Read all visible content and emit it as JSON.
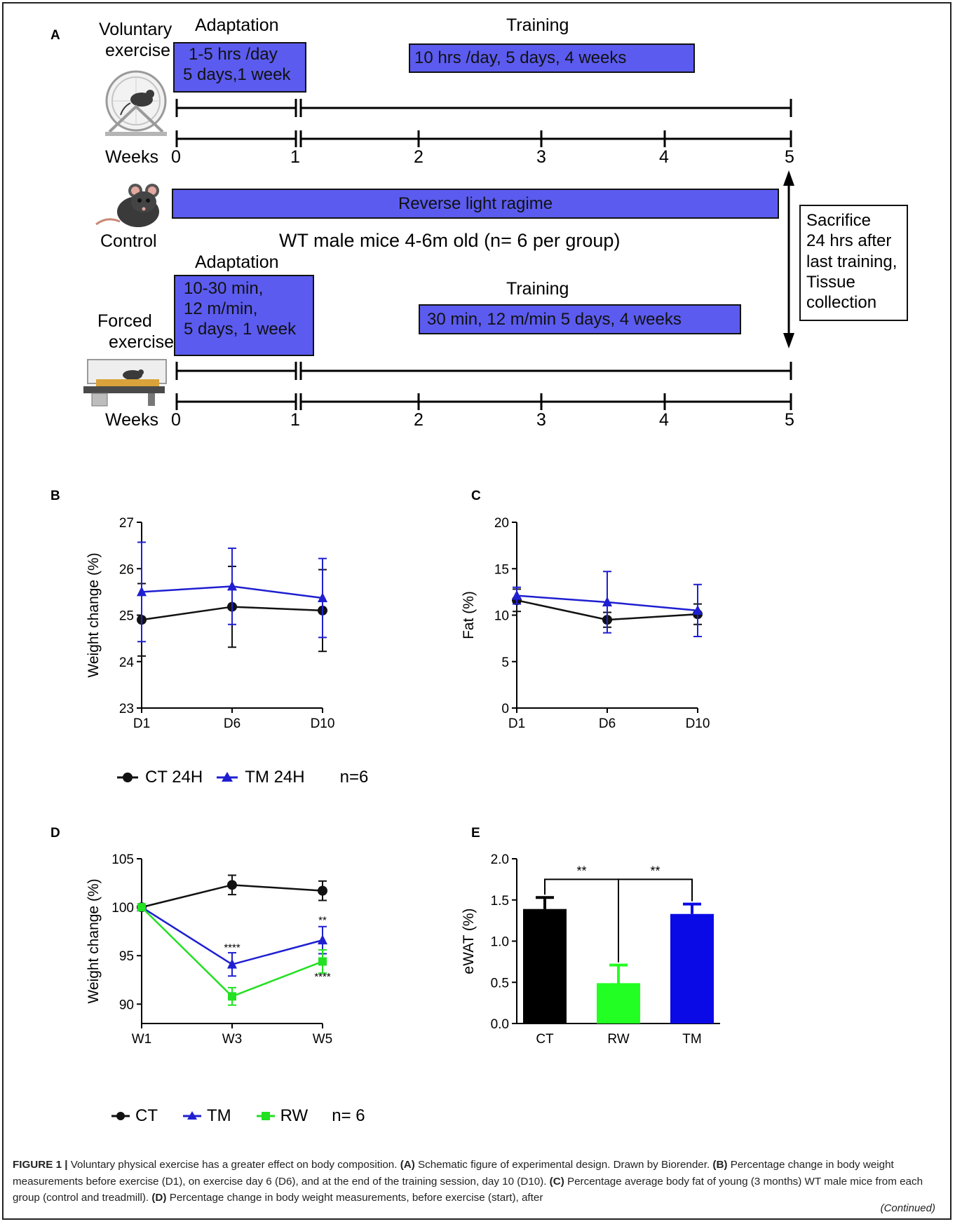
{
  "panel_labels": {
    "a": "A",
    "b": "B",
    "c": "C",
    "d": "D",
    "e": "E"
  },
  "schematic": {
    "voluntary_label_line1": "Voluntary",
    "voluntary_label_line2": "exercise",
    "adaptation_top": "Adaptation",
    "training_top": "Training",
    "box_adapt_top_line1": "1-5 hrs /day",
    "box_adapt_top_line2": "5 days,1 week",
    "box_train_top": "10 hrs /day, 5 days, 4 weeks",
    "weeks_label": "Weeks",
    "week_ticks": [
      "0",
      "1",
      "2",
      "3",
      "4",
      "5"
    ],
    "control_label": "Control",
    "reverse_light": "Reverse light ragime",
    "mice_info": "WT male mice 4-6m old (n= 6 per group)",
    "adaptation_bottom": "Adaptation",
    "training_bottom": "Training",
    "box_adapt_bottom_line1": "10-30 min,",
    "box_adapt_bottom_line2": "12 m/min,",
    "box_adapt_bottom_line3": "5 days, 1 week",
    "box_train_bottom": "30 min, 12 m/min 5 days, 4 weeks",
    "forced_label_line1": "Forced",
    "forced_label_line2": "exercise",
    "sacrifice_lines": [
      "Sacrifice",
      "24 hrs after",
      "last training,",
      "Tissue",
      "collection"
    ],
    "colors": {
      "box_fill": "#5b5bef"
    }
  },
  "chart_data": [
    {
      "panel": "B",
      "type": "line",
      "ylabel": "Weight change  (%)",
      "xlabel": "",
      "categories": [
        "D1",
        "D6",
        "D10"
      ],
      "ylim": [
        23,
        27
      ],
      "yticks": [
        "23",
        "24",
        "25",
        "26",
        "27"
      ],
      "series": [
        {
          "name": "CT 24H",
          "color": "#111111",
          "marker": "circle",
          "values": [
            24.9,
            25.18,
            25.1
          ],
          "err": [
            0.78,
            0.87,
            0.88
          ]
        },
        {
          "name": "TM 24H",
          "color": "#1f1fd1",
          "marker": "triangle",
          "values": [
            25.5,
            25.62,
            25.37
          ],
          "err": [
            1.07,
            0.82,
            0.85
          ]
        }
      ],
      "legend_note": "n=6"
    },
    {
      "panel": "C",
      "type": "line",
      "ylabel": "Fat (%)",
      "xlabel": "",
      "categories": [
        "D1",
        "D6",
        "D10"
      ],
      "ylim": [
        0,
        20
      ],
      "yticks": [
        "0",
        "5",
        "10",
        "15",
        "20"
      ],
      "series": [
        {
          "name": "CT 24H",
          "color": "#111111",
          "marker": "circle",
          "values": [
            11.6,
            9.5,
            10.1
          ],
          "err": [
            1.2,
            0.8,
            1.1
          ]
        },
        {
          "name": "TM 24H",
          "color": "#1f1fd1",
          "marker": "triangle",
          "values": [
            12.1,
            11.4,
            10.5
          ],
          "err": [
            0.9,
            3.3,
            2.8
          ]
        }
      ]
    },
    {
      "panel": "D",
      "type": "line",
      "ylabel": "Weight change  (%)",
      "xlabel": "",
      "categories": [
        "W1",
        "W3",
        "W5"
      ],
      "ylim": [
        88,
        105
      ],
      "yticks": [
        "90",
        "95",
        "100",
        "105"
      ],
      "series": [
        {
          "name": "CT",
          "color": "#111111",
          "marker": "circle",
          "values": [
            100,
            102.3,
            101.7
          ],
          "err": [
            0.2,
            1.0,
            1.0
          ]
        },
        {
          "name": "TM",
          "color": "#1f1fd1",
          "marker": "triangle",
          "values": [
            100,
            94.1,
            96.6
          ],
          "err": [
            0.2,
            1.2,
            1.4
          ]
        },
        {
          "name": "RW",
          "color": "#22e022",
          "marker": "square",
          "values": [
            100,
            90.8,
            94.4
          ],
          "err": [
            0.2,
            0.9,
            1.2
          ]
        }
      ],
      "annotations": [
        {
          "text": "****",
          "x": "W3",
          "y": 95.5
        },
        {
          "text": "**",
          "x": "W5",
          "y": 98.3
        },
        {
          "text": "****",
          "x": "W5",
          "y": 92.5
        }
      ],
      "legend_note": "n= 6"
    },
    {
      "panel": "E",
      "type": "bar",
      "ylabel": "eWAT (%)",
      "xlabel": "",
      "categories": [
        "CT",
        "RW",
        "TM"
      ],
      "ylim": [
        0,
        2.0
      ],
      "yticks": [
        "0.0",
        "0.5",
        "1.0",
        "1.5",
        "2.0"
      ],
      "values": [
        1.39,
        0.49,
        1.33
      ],
      "err": [
        0.14,
        0.22,
        0.12
      ],
      "colors": [
        "#000000",
        "#22ff22",
        "#0a0ae6"
      ],
      "significance": [
        {
          "from": "CT",
          "to": "RW",
          "text": "**"
        },
        {
          "from": "RW",
          "to": "TM",
          "text": "**"
        }
      ]
    }
  ],
  "legends": {
    "bc": {
      "items": [
        "CT 24H",
        "TM 24H"
      ],
      "note": "n=6"
    },
    "de": {
      "items": [
        "CT",
        "TM",
        "RW"
      ],
      "note": "n= 6"
    }
  },
  "caption": {
    "fig": "FIGURE 1 |",
    "title": " Voluntary physical exercise has a greater effect on body composition. ",
    "a": "(A)",
    "a_text": " Schematic figure of experimental design. Drawn by Biorender. ",
    "b": "(B)",
    "b_text": " Percentage change in body weight measurements before exercise (D1), on exercise day 6 (D6), and at the end of the training session, day 10 (D10). ",
    "c": "(C)",
    "c_text": " Percentage average body fat of young (3 months) WT male mice from each group (control and treadmill). ",
    "d": "(D)",
    "d_text": " Percentage change in body weight measurements, before exercise (start), after",
    "continued": "(Continued)"
  }
}
